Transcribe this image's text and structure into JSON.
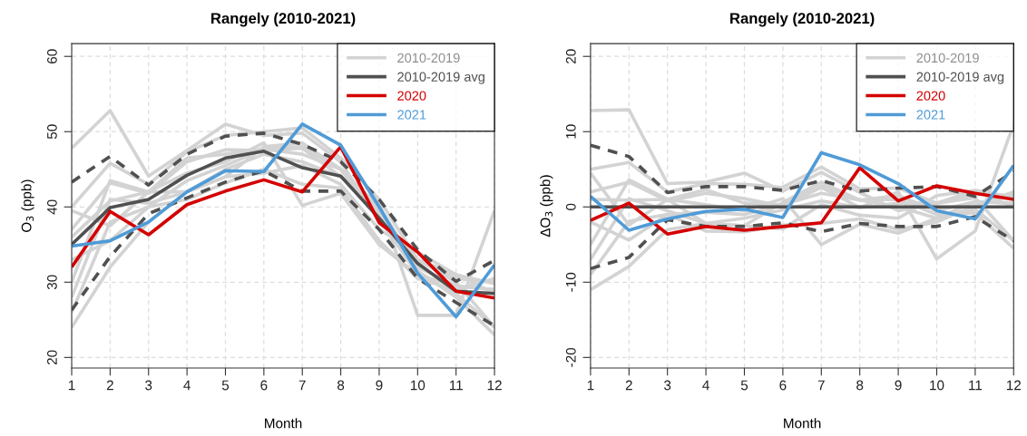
{
  "chart_data": [
    {
      "type": "line",
      "title": "Rangely (2010-2021)",
      "xlabel": "Month",
      "ylabel": "O$_{3}$ (ppb)",
      "x": [
        1,
        2,
        3,
        4,
        5,
        6,
        7,
        8,
        9,
        10,
        11,
        12
      ],
      "xlim": [
        1,
        12
      ],
      "xticks": [
        1,
        2,
        3,
        4,
        5,
        6,
        7,
        8,
        9,
        10,
        11,
        12
      ],
      "ylim": [
        18.6,
        61.7
      ],
      "yticks": [
        20,
        30,
        40,
        50,
        60
      ],
      "grid": true,
      "legend": "top right",
      "line_style": "solid",
      "series": [
        {
          "name": "2010-2019",
          "color": "#d3d3d3",
          "values": [
            47.8,
            52.8,
            44.1,
            47.5,
            51,
            49.5,
            49.8,
            46,
            38,
            33,
            30,
            24
          ]
        },
        {
          "color": "#d3d3d3",
          "values": [
            40,
            45.8,
            43,
            47.3,
            49.5,
            50,
            50.5,
            46.5,
            41,
            33,
            30.5,
            30
          ]
        },
        {
          "color": "#d3d3d3",
          "values": [
            37,
            43.2,
            41.8,
            46,
            47.6,
            47.5,
            47.8,
            44,
            40.5,
            25.6,
            25.6,
            39.5
          ]
        },
        {
          "color": "#d3d3d3",
          "values": [
            30,
            43.5,
            42,
            44.5,
            46,
            48.5,
            40.2,
            41.8,
            35,
            31,
            29.5,
            29
          ]
        },
        {
          "color": "#d3d3d3",
          "values": [
            24,
            32,
            38,
            42,
            44,
            48,
            48.5,
            45,
            38.5,
            31,
            28.5,
            24
          ]
        },
        {
          "color": "#d3d3d3",
          "values": [
            28,
            41,
            40.5,
            42,
            45,
            47,
            46,
            44,
            39,
            33,
            31,
            28.5
          ]
        },
        {
          "color": "#d3d3d3",
          "values": [
            26,
            38,
            40,
            43.5,
            45.5,
            47.7,
            47,
            45,
            39.5,
            31.5,
            28,
            23
          ]
        },
        {
          "color": "#d3d3d3",
          "values": [
            39.5,
            37.5,
            42,
            42,
            44,
            44.5,
            45.5,
            43,
            37,
            34,
            31,
            29.8
          ]
        },
        {
          "color": "#d3d3d3",
          "values": [
            36,
            40.8,
            42,
            46.5,
            47,
            47.7,
            48,
            45,
            40,
            32,
            29.5,
            29
          ]
        },
        {
          "color": "#d3d3d3",
          "values": [
            33,
            35.5,
            40,
            41,
            43.2,
            45,
            43,
            42.5,
            35.5,
            30.5,
            29,
            30.5
          ]
        },
        {
          "color": "#505050",
          "line_style": "dashed",
          "values": [
            43.3,
            46.7,
            42.9,
            47,
            49.4,
            49.8,
            48.3,
            46,
            41,
            34.3,
            30.1,
            32.9
          ]
        },
        {
          "color": "#505050",
          "line_style": "dashed",
          "values": [
            26.3,
            33.4,
            39.1,
            41.2,
            43.3,
            44.8,
            42.1,
            42.1,
            37,
            30.5,
            27.3,
            24.2
          ]
        },
        {
          "name": "2010-2019 avg",
          "color": "#505050",
          "values": [
            35,
            39.9,
            41,
            44.2,
            46.5,
            47.4,
            45.2,
            44.1,
            38.5,
            32.5,
            28.8,
            28.5
          ]
        },
        {
          "name": "2020",
          "color": "#d40000",
          "values": [
            32,
            39.4,
            36.3,
            40.3,
            42.1,
            43.6,
            42,
            48,
            37.9,
            34,
            28.8,
            27.9
          ]
        },
        {
          "name": "2021",
          "color": "#4f9bd7",
          "values": [
            34.8,
            35.5,
            38,
            42,
            44.8,
            44.7,
            51,
            48.2,
            40,
            31.2,
            25.4,
            32.3
          ]
        }
      ]
    },
    {
      "type": "line",
      "title": "Rangely (2010-2021)",
      "xlabel": "Month",
      "ylabel": "ΔO$_{3}$ (ppb)",
      "x": [
        1,
        2,
        3,
        4,
        5,
        6,
        7,
        8,
        9,
        10,
        11,
        12
      ],
      "xlim": [
        1,
        12
      ],
      "xticks": [
        1,
        2,
        3,
        4,
        5,
        6,
        7,
        8,
        9,
        10,
        11,
        12
      ],
      "ylim": [
        -21.4,
        21.7
      ],
      "yticks": [
        -20,
        -10,
        0,
        10,
        20
      ],
      "grid": true,
      "legend": "top right",
      "line_style": "solid",
      "series": [
        {
          "name": "2010-2019",
          "color": "#d3d3d3",
          "values": [
            12.8,
            12.9,
            3.1,
            3.3,
            4.5,
            2.1,
            4.6,
            1.9,
            -0.5,
            0.5,
            1.2,
            -4.5
          ]
        },
        {
          "color": "#d3d3d3",
          "values": [
            5,
            5.9,
            2,
            3.1,
            3,
            2.6,
            5.3,
            2.4,
            2.5,
            0.5,
            1.7,
            1.5
          ]
        },
        {
          "color": "#d3d3d3",
          "values": [
            2,
            3.3,
            0.8,
            1.8,
            1.1,
            0.1,
            2.6,
            -0.1,
            2,
            -6.9,
            -3.2,
            11
          ]
        },
        {
          "color": "#d3d3d3",
          "values": [
            -5,
            3.6,
            1,
            0.3,
            -0.5,
            1.1,
            -5,
            -2.3,
            -3.5,
            -1.5,
            0.7,
            0.5
          ]
        },
        {
          "color": "#d3d3d3",
          "values": [
            -11,
            -7.9,
            -3,
            -2.2,
            -2.5,
            0.6,
            3.3,
            0.9,
            0,
            -1.5,
            -0.3,
            -4.5
          ]
        },
        {
          "color": "#d3d3d3",
          "values": [
            -7,
            1.1,
            -0.5,
            -2.2,
            -1.5,
            -0.4,
            0.8,
            -0.1,
            0.5,
            0.5,
            2.2,
            0
          ]
        },
        {
          "color": "#d3d3d3",
          "values": [
            -9,
            -1.9,
            -1,
            -0.7,
            -1,
            0.3,
            1.8,
            0.9,
            1,
            -1,
            -0.8,
            -5.5
          ]
        },
        {
          "color": "#d3d3d3",
          "values": [
            4.5,
            -2.4,
            1,
            -2.2,
            -2.5,
            -2.9,
            0.3,
            -1.1,
            -1.5,
            1.5,
            2.2,
            1.3
          ]
        },
        {
          "color": "#d3d3d3",
          "values": [
            1,
            0.9,
            1,
            2.3,
            0.5,
            0.3,
            2.8,
            0.9,
            1.5,
            -0.5,
            0.7,
            0.5
          ]
        },
        {
          "color": "#d3d3d3",
          "values": [
            -2,
            -4.4,
            -1,
            -3.2,
            -3.3,
            -2.4,
            -2.2,
            -1.6,
            -3,
            -2,
            0.2,
            2
          ]
        },
        {
          "color": "#505050",
          "line_style": "dashed",
          "values": [
            8.2,
            6.7,
            1.9,
            2.7,
            2.7,
            2.2,
            3.5,
            2.1,
            2.5,
            2.7,
            1.4,
            4.7
          ]
        },
        {
          "color": "#505050",
          "line_style": "dashed",
          "values": [
            -8.2,
            -6.7,
            -1.7,
            -2.6,
            -2.6,
            -2.1,
            -3.3,
            -2.2,
            -2.6,
            -2.6,
            -1.3,
            -4.5
          ]
        },
        {
          "name": "2010-2019 avg",
          "color": "#505050",
          "values": [
            0,
            0,
            0,
            0,
            0,
            0,
            0,
            0,
            0,
            0,
            0,
            0
          ]
        },
        {
          "name": "2020",
          "color": "#d40000",
          "values": [
            -1.8,
            0.5,
            -3.6,
            -2.6,
            -3.1,
            -2.6,
            -2.1,
            5.2,
            0.8,
            2.8,
            1.8,
            1
          ]
        },
        {
          "name": "2021",
          "color": "#4f9bd7",
          "values": [
            1.4,
            -3.1,
            -1.6,
            -0.6,
            -0.3,
            -1.4,
            7.2,
            5.6,
            3.1,
            -0.5,
            -1.6,
            5.5
          ]
        }
      ]
    }
  ]
}
